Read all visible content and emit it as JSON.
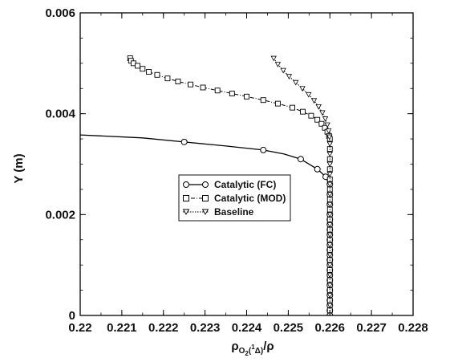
{
  "chart_data": {
    "type": "line",
    "title": "",
    "xlabel": "ρO2(1Δ)/ρ",
    "ylabel": "Y (m)",
    "xlim": [
      0.22,
      0.228
    ],
    "ylim": [
      0,
      0.006
    ],
    "x_ticks": [
      "0.22",
      "0.221",
      "0.222",
      "0.223",
      "0.224",
      "0.225",
      "0.226",
      "0.227",
      "0.228"
    ],
    "y_ticks": [
      "0",
      "0.002",
      "0.004",
      "0.006"
    ],
    "grid": false,
    "legend_position": "center",
    "series": [
      {
        "name": "Catalytic (FC)",
        "color": "#000000",
        "line_style": "solid",
        "marker": "circle",
        "x": [
          0.22,
          0.2215,
          0.2225,
          0.2235,
          0.2244,
          0.2249,
          0.2253,
          0.2257,
          0.2259,
          0.22598,
          0.226,
          0.226,
          0.226,
          0.226,
          0.226,
          0.226,
          0.226,
          0.226,
          0.226,
          0.226,
          0.226,
          0.226,
          0.226,
          0.226,
          0.226,
          0.226,
          0.226,
          0.226,
          0.226,
          0.226,
          0.226,
          0.226,
          0.226
        ],
        "y": [
          0.00358,
          0.00352,
          0.00344,
          0.00336,
          0.00328,
          0.0032,
          0.0031,
          0.0029,
          0.00275,
          0.0026,
          0.0024,
          0.0022,
          0.002,
          0.0019,
          0.0018,
          0.0017,
          0.0016,
          0.0015,
          0.0014,
          0.0013,
          0.0012,
          0.0011,
          0.001,
          0.0009,
          0.0008,
          0.0007,
          0.0006,
          0.0005,
          0.0004,
          0.0003,
          0.0002,
          0.0001,
          0.0
        ],
        "marker_points": [
          [
            0.2225,
            0.00344
          ],
          [
            0.2244,
            0.00328
          ],
          [
            0.2253,
            0.0031
          ],
          [
            0.2257,
            0.0029
          ],
          [
            0.2259,
            0.00275
          ],
          [
            0.226,
            0.0026
          ],
          [
            0.226,
            0.0024
          ],
          [
            0.226,
            0.0022
          ],
          [
            0.226,
            0.002
          ],
          [
            0.226,
            0.0019
          ],
          [
            0.226,
            0.0018
          ],
          [
            0.226,
            0.0017
          ],
          [
            0.226,
            0.0016
          ],
          [
            0.226,
            0.0015
          ],
          [
            0.226,
            0.0014
          ],
          [
            0.226,
            0.0013
          ],
          [
            0.226,
            0.0012
          ],
          [
            0.226,
            0.0011
          ],
          [
            0.226,
            0.001
          ],
          [
            0.226,
            0.0009
          ],
          [
            0.226,
            0.0008
          ],
          [
            0.226,
            0.0007
          ],
          [
            0.226,
            0.0006
          ],
          [
            0.226,
            0.0005
          ],
          [
            0.226,
            0.0004
          ],
          [
            0.226,
            0.0003
          ],
          [
            0.226,
            0.0002
          ],
          [
            0.226,
            0.0001
          ],
          [
            0.226,
            0.0
          ]
        ]
      },
      {
        "name": "Catalytic (MOD)",
        "color": "#000000",
        "line_style": "dashdot",
        "marker": "square",
        "x": [
          0.2212,
          0.22122,
          0.22128,
          0.22138,
          0.2215,
          0.22165,
          0.22185,
          0.2221,
          0.22235,
          0.22265,
          0.22295,
          0.2233,
          0.22365,
          0.224,
          0.2244,
          0.22475,
          0.2251,
          0.22535,
          0.22555,
          0.2257,
          0.2258,
          0.22588,
          0.22594,
          0.22598,
          0.226,
          0.226,
          0.226,
          0.226,
          0.226,
          0.226,
          0.226,
          0.226,
          0.226,
          0.226,
          0.226,
          0.226,
          0.226,
          0.226,
          0.226,
          0.226,
          0.226,
          0.226,
          0.226
        ],
        "y": [
          0.0051,
          0.00505,
          0.005,
          0.00495,
          0.00489,
          0.00483,
          0.00477,
          0.0047,
          0.00464,
          0.00458,
          0.00452,
          0.00446,
          0.0044,
          0.00434,
          0.00427,
          0.0042,
          0.00412,
          0.00404,
          0.00396,
          0.00388,
          0.0038,
          0.00372,
          0.00364,
          0.00356,
          0.0035,
          0.0033,
          0.0031,
          0.0029,
          0.0027,
          0.0025,
          0.0023,
          0.0021,
          0.0019,
          0.0017,
          0.0015,
          0.0013,
          0.0011,
          0.0009,
          0.0007,
          0.0005,
          0.0003,
          0.0001,
          0.0
        ],
        "marker_points": [
          [
            0.2212,
            0.0051
          ],
          [
            0.22122,
            0.00505
          ],
          [
            0.22128,
            0.005
          ],
          [
            0.22138,
            0.00495
          ],
          [
            0.2215,
            0.00489
          ],
          [
            0.22165,
            0.00483
          ],
          [
            0.22185,
            0.00477
          ],
          [
            0.2221,
            0.0047
          ],
          [
            0.22235,
            0.00464
          ],
          [
            0.22265,
            0.00458
          ],
          [
            0.22295,
            0.00452
          ],
          [
            0.2233,
            0.00446
          ],
          [
            0.22365,
            0.0044
          ],
          [
            0.224,
            0.00434
          ],
          [
            0.2244,
            0.00427
          ],
          [
            0.22475,
            0.0042
          ],
          [
            0.2251,
            0.00412
          ],
          [
            0.22535,
            0.00404
          ],
          [
            0.22555,
            0.00396
          ],
          [
            0.2257,
            0.00388
          ],
          [
            0.2258,
            0.0038
          ],
          [
            0.22588,
            0.00372
          ],
          [
            0.22594,
            0.00364
          ],
          [
            0.22598,
            0.00356
          ],
          [
            0.226,
            0.0035
          ],
          [
            0.226,
            0.0033
          ],
          [
            0.226,
            0.0031
          ],
          [
            0.226,
            0.0029
          ],
          [
            0.226,
            0.0027
          ],
          [
            0.226,
            0.0025
          ],
          [
            0.226,
            0.0023
          ],
          [
            0.226,
            0.0021
          ],
          [
            0.226,
            0.0019
          ],
          [
            0.226,
            0.0017
          ],
          [
            0.226,
            0.0015
          ],
          [
            0.226,
            0.0013
          ],
          [
            0.226,
            0.0011
          ],
          [
            0.226,
            0.0009
          ],
          [
            0.226,
            0.0007
          ],
          [
            0.226,
            0.0005
          ],
          [
            0.226,
            0.0003
          ],
          [
            0.226,
            0.0001
          ]
        ]
      },
      {
        "name": "Baseline",
        "color": "#000000",
        "line_style": "dotted",
        "marker": "triangle-down",
        "x": [
          0.22465,
          0.22475,
          0.22488,
          0.22502,
          0.22518,
          0.22534,
          0.22549,
          0.22562,
          0.22573,
          0.22582,
          0.22589,
          0.22594,
          0.22597,
          0.22599,
          0.226,
          0.226,
          0.226,
          0.226,
          0.226,
          0.226,
          0.226,
          0.226,
          0.226,
          0.226,
          0.226,
          0.226,
          0.226,
          0.226,
          0.226,
          0.226,
          0.226,
          0.226,
          0.226
        ],
        "y": [
          0.0051,
          0.00498,
          0.00486,
          0.00474,
          0.00462,
          0.0045,
          0.00438,
          0.00426,
          0.00414,
          0.00402,
          0.0039,
          0.00378,
          0.00366,
          0.00354,
          0.0034,
          0.0032,
          0.003,
          0.0028,
          0.0026,
          0.0024,
          0.0022,
          0.002,
          0.0018,
          0.0016,
          0.0014,
          0.0012,
          0.001,
          0.0008,
          0.0006,
          0.0004,
          0.0002,
          0.0001,
          0.0
        ],
        "marker_points": [
          [
            0.22465,
            0.0051
          ],
          [
            0.22475,
            0.00498
          ],
          [
            0.22488,
            0.00486
          ],
          [
            0.22502,
            0.00474
          ],
          [
            0.22518,
            0.00462
          ],
          [
            0.22534,
            0.0045
          ],
          [
            0.22549,
            0.00438
          ],
          [
            0.22562,
            0.00426
          ],
          [
            0.22573,
            0.00414
          ],
          [
            0.22582,
            0.00402
          ],
          [
            0.22589,
            0.0039
          ],
          [
            0.22594,
            0.00378
          ],
          [
            0.22597,
            0.00366
          ],
          [
            0.22599,
            0.00354
          ],
          [
            0.226,
            0.0034
          ],
          [
            0.226,
            0.0032
          ],
          [
            0.226,
            0.003
          ],
          [
            0.226,
            0.0028
          ],
          [
            0.226,
            0.0026
          ],
          [
            0.226,
            0.0024
          ],
          [
            0.226,
            0.0022
          ],
          [
            0.226,
            0.002
          ],
          [
            0.226,
            0.0018
          ],
          [
            0.226,
            0.0016
          ],
          [
            0.226,
            0.0014
          ],
          [
            0.226,
            0.0012
          ],
          [
            0.226,
            0.001
          ],
          [
            0.226,
            0.0008
          ],
          [
            0.226,
            0.0006
          ],
          [
            0.226,
            0.0004
          ],
          [
            0.226,
            0.0002
          ]
        ]
      }
    ]
  }
}
